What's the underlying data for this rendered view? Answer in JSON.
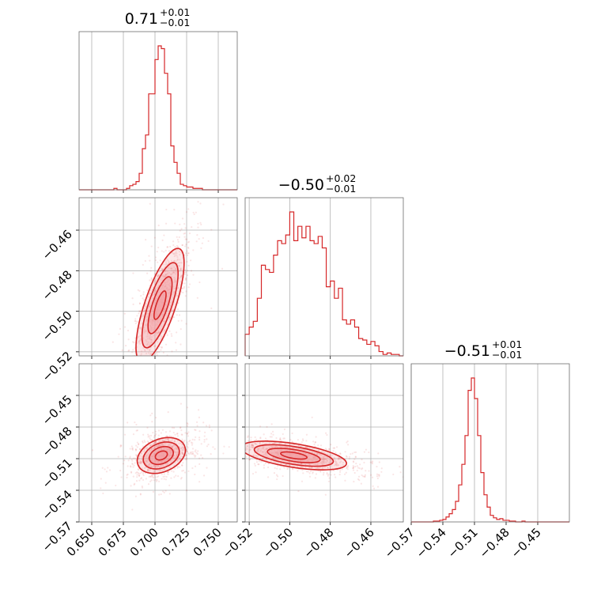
{
  "colors": {
    "accent": "#d62728",
    "fill": "#f2a0a4",
    "grid": "#b0b0b0",
    "frame": "#6b6b6b"
  },
  "chart_data": [
    {
      "type": "histogram",
      "panel": "0-0",
      "parameter": 0,
      "title": {
        "main": "0.71",
        "upper": "+0.01",
        "lower": "−0.01"
      },
      "xlim": [
        0.64,
        0.765
      ],
      "x_ticks": [
        0.65,
        0.675,
        0.7,
        0.725,
        0.75
      ],
      "x_tick_labels": [],
      "bins": [
        0.64,
        0.6425,
        0.645,
        0.6475,
        0.65,
        0.6525,
        0.655,
        0.6575,
        0.66,
        0.6625,
        0.665,
        0.6675,
        0.67,
        0.6725,
        0.675,
        0.6775,
        0.68,
        0.6825,
        0.685,
        0.6875,
        0.69,
        0.6925,
        0.695,
        0.6975,
        0.7,
        0.7025,
        0.705,
        0.7075,
        0.71,
        0.7125,
        0.715,
        0.7175,
        0.72,
        0.7225,
        0.725,
        0.7275,
        0.73,
        0.7325,
        0.735,
        0.7375,
        0.74,
        0.7425,
        0.745,
        0.7475,
        0.75,
        0.7525,
        0.755,
        0.7575,
        0.76,
        0.7625,
        0.765
      ],
      "counts": [
        0,
        0,
        0,
        0,
        0,
        0,
        0,
        0,
        0,
        0,
        0,
        1,
        0,
        0,
        0,
        1,
        3,
        4,
        6,
        12,
        30,
        40,
        70,
        70,
        95,
        105,
        103,
        85,
        70,
        32,
        20,
        12,
        4,
        3,
        2,
        2,
        1,
        1,
        1,
        0,
        0,
        0,
        0,
        0,
        0,
        0,
        0,
        0,
        0,
        0
      ],
      "quantiles": [
        0.7,
        0.71,
        0.72
      ]
    },
    {
      "type": "scatter-contour",
      "panel": "1-0",
      "x_parameter": 0,
      "y_parameter": 1,
      "xlim": [
        0.64,
        0.765
      ],
      "ylim": [
        -0.522,
        -0.444
      ],
      "x_ticks": [
        0.65,
        0.675,
        0.7,
        0.725,
        0.75
      ],
      "x_tick_labels": [],
      "y_ticks": [
        -0.46,
        -0.48,
        -0.5,
        -0.52
      ],
      "y_tick_labels": [
        "−0.46",
        "−0.48",
        "−0.50",
        "−0.52"
      ],
      "density": {
        "center": [
          0.704,
          -0.497
        ],
        "sigma": [
          0.0095,
          0.014
        ],
        "correlation": 0.74
      }
    },
    {
      "type": "scatter-contour",
      "panel": "2-0",
      "x_parameter": 0,
      "y_parameter": 2,
      "xlim": [
        0.64,
        0.765
      ],
      "ylim": [
        -0.57,
        -0.42
      ],
      "x_ticks": [
        0.65,
        0.675,
        0.7,
        0.725,
        0.75
      ],
      "x_tick_labels": [
        "0.650",
        "0.675",
        "0.700",
        "0.725",
        "0.750"
      ],
      "y_ticks": [
        -0.45,
        -0.48,
        -0.51,
        -0.54,
        -0.57
      ],
      "y_tick_labels": [
        "−0.45",
        "−0.48",
        "−0.51",
        "−0.54",
        "−0.57"
      ],
      "density": {
        "center": [
          0.705,
          -0.507
        ],
        "sigma": [
          0.0095,
          0.0085
        ],
        "correlation": 0.3
      }
    },
    {
      "type": "histogram",
      "panel": "1-1",
      "parameter": 1,
      "title": {
        "main": "−0.50",
        "upper": "+0.02",
        "lower": "−0.01"
      },
      "xlim": [
        -0.522,
        -0.444
      ],
      "x_ticks": [
        -0.52,
        -0.5,
        -0.48,
        -0.46
      ],
      "x_tick_labels": [],
      "bins": [
        -0.522,
        -0.52,
        -0.518,
        -0.516,
        -0.514,
        -0.512,
        -0.51,
        -0.508,
        -0.506,
        -0.504,
        -0.502,
        -0.5,
        -0.498,
        -0.496,
        -0.494,
        -0.492,
        -0.49,
        -0.488,
        -0.486,
        -0.484,
        -0.482,
        -0.48,
        -0.478,
        -0.476,
        -0.474,
        -0.472,
        -0.47,
        -0.468,
        -0.466,
        -0.464,
        -0.462,
        -0.46,
        -0.458,
        -0.456,
        -0.454,
        -0.452,
        -0.45,
        -0.448,
        -0.446,
        -0.444
      ],
      "counts": [
        15,
        20,
        24,
        40,
        63,
        60,
        58,
        70,
        80,
        78,
        84,
        100,
        80,
        90,
        82,
        90,
        80,
        78,
        83,
        75,
        48,
        52,
        40,
        47,
        25,
        22,
        25,
        20,
        12,
        11,
        8,
        10,
        7,
        3,
        1,
        2,
        1,
        1,
        0
      ],
      "quantiles": [
        -0.511,
        -0.5,
        -0.484
      ]
    },
    {
      "type": "scatter-contour",
      "panel": "2-1",
      "x_parameter": 1,
      "y_parameter": 2,
      "xlim": [
        -0.522,
        -0.444
      ],
      "ylim": [
        -0.57,
        -0.42
      ],
      "x_ticks": [
        -0.52,
        -0.5,
        -0.48,
        -0.46
      ],
      "x_tick_labels": [
        "−0.52",
        "−0.50",
        "−0.48",
        "−0.46"
      ],
      "y_ticks": [
        -0.45,
        -0.48,
        -0.51,
        -0.54,
        -0.57
      ],
      "y_tick_labels": [],
      "density": {
        "center": [
          -0.498,
          -0.507
        ],
        "sigma": [
          0.013,
          0.0068
        ],
        "correlation": -0.55
      }
    },
    {
      "type": "histogram",
      "panel": "2-2",
      "parameter": 2,
      "title": {
        "main": "−0.51",
        "upper": "+0.01",
        "lower": "−0.01"
      },
      "xlim": [
        -0.57,
        -0.42
      ],
      "x_ticks": [
        -0.57,
        -0.54,
        -0.51,
        -0.48,
        -0.45
      ],
      "x_tick_labels": [
        "−0.57",
        "−0.54",
        "−0.51",
        "−0.48",
        "−0.45"
      ],
      "bins": [
        -0.57,
        -0.567,
        -0.564,
        -0.561,
        -0.558,
        -0.555,
        -0.552,
        -0.549,
        -0.546,
        -0.543,
        -0.54,
        -0.537,
        -0.534,
        -0.531,
        -0.528,
        -0.525,
        -0.522,
        -0.519,
        -0.516,
        -0.513,
        -0.51,
        -0.507,
        -0.504,
        -0.501,
        -0.498,
        -0.495,
        -0.492,
        -0.489,
        -0.486,
        -0.483,
        -0.48,
        -0.477,
        -0.474,
        -0.471,
        -0.468,
        -0.465,
        -0.462,
        -0.459,
        -0.456,
        -0.453,
        -0.45,
        -0.447,
        -0.444,
        -0.441,
        -0.438,
        -0.435,
        -0.432,
        -0.429,
        -0.426,
        -0.423,
        -0.42
      ],
      "counts": [
        0,
        0,
        0,
        0,
        0,
        0,
        0,
        1,
        1,
        2,
        3,
        6,
        10,
        15,
        25,
        45,
        70,
        105,
        160,
        175,
        150,
        105,
        60,
        33,
        18,
        8,
        5,
        3,
        4,
        2,
        2,
        1,
        1,
        0,
        0,
        1,
        0,
        0,
        0,
        0,
        0,
        0,
        0,
        0,
        0,
        0,
        0,
        0,
        0,
        0
      ],
      "quantiles": [
        -0.518,
        -0.508,
        -0.497
      ]
    }
  ]
}
